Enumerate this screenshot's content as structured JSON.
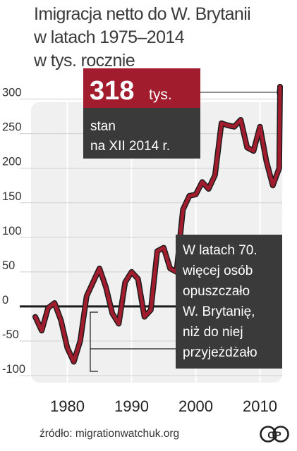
{
  "title_lines": [
    "Imigracja netto do W. Brytanii",
    "w latach 1975–2014",
    "w tys. rocznie"
  ],
  "callout_top": {
    "value": "318",
    "unit": "tys.",
    "line1": "stan",
    "line2": "na XII 2014 r."
  },
  "callout_bottom": {
    "lines": [
      "W latach 70.",
      "więcej osób",
      "opuszczało",
      "W. Brytanię,",
      "niż do niej",
      "przyjeżdżało"
    ]
  },
  "source": "źródło: migrationwatchuk.org",
  "logo_text": "CP",
  "colors": {
    "line": "#a11d2e",
    "plot_bg": "#f0f0f0",
    "callout_dark": "#3a3a3a",
    "callout_red": "#a11d2e"
  },
  "chart_data": {
    "type": "line",
    "x": [
      1975,
      1976,
      1977,
      1978,
      1979,
      1980,
      1981,
      1982,
      1983,
      1984,
      1985,
      1986,
      1987,
      1988,
      1989,
      1990,
      1991,
      1992,
      1993,
      1994,
      1995,
      1996,
      1997,
      1998,
      1999,
      2000,
      2001,
      2002,
      2003,
      2004,
      2005,
      2006,
      2007,
      2008,
      2009,
      2010,
      2011,
      2012,
      2013,
      2014
    ],
    "y": [
      -15,
      -35,
      -2,
      5,
      -20,
      -60,
      -80,
      -50,
      15,
      35,
      55,
      28,
      -10,
      -25,
      35,
      50,
      40,
      -15,
      -5,
      80,
      85,
      55,
      50,
      140,
      160,
      162,
      180,
      170,
      190,
      265,
      262,
      260,
      270,
      230,
      225,
      260,
      210,
      175,
      200,
      318
    ],
    "xlim": [
      1974,
      2015
    ],
    "ylim": [
      -100,
      320
    ],
    "yticks": [
      300,
      250,
      200,
      150,
      100,
      50,
      0,
      -50,
      -100
    ],
    "ytick_labels": [
      "300",
      "250",
      "200",
      "150",
      "100",
      "50",
      "0",
      "-50",
      "-100"
    ],
    "xticks": [
      1980,
      1990,
      2000,
      2010
    ],
    "xtick_labels": [
      "1980",
      "1990",
      "2000",
      "2010"
    ],
    "grid": true,
    "baseline": 0
  }
}
